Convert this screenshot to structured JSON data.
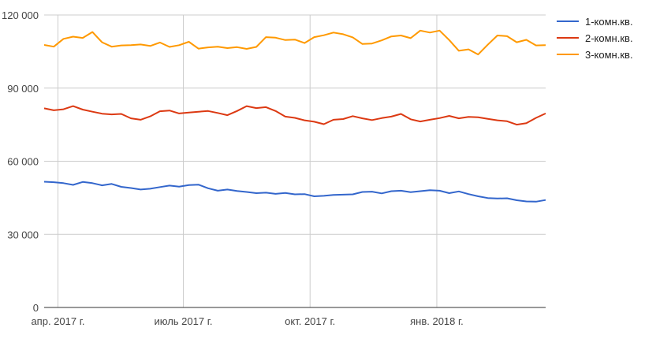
{
  "chart_data": {
    "type": "line",
    "x_format": "date",
    "x_range": [
      "2017-03-22",
      "2018-03-21"
    ],
    "x_tick_dates": [
      "2017-04-01",
      "2017-07-01",
      "2017-10-01",
      "2018-01-01"
    ],
    "x_tick_labels": [
      "апр. 2017 г.",
      "июль 2017 г.",
      "окт. 2017 г.",
      "янв. 2018 г."
    ],
    "ylim": [
      0,
      120000
    ],
    "y_ticks": [
      0,
      30000,
      60000,
      90000,
      120000
    ],
    "y_tick_labels": [
      "0",
      "30 000",
      "60 000",
      "90 000",
      "120 000"
    ],
    "grid": true,
    "legend_position": "right",
    "series": [
      {
        "name": "1-комн.кв.",
        "color": "#3366cc",
        "points": [
          [
            "2017-03-22",
            51600
          ],
          [
            "2017-03-29",
            51400
          ],
          [
            "2017-04-05",
            51000
          ],
          [
            "2017-04-12",
            50300
          ],
          [
            "2017-04-19",
            51500
          ],
          [
            "2017-04-26",
            51000
          ],
          [
            "2017-05-03",
            50100
          ],
          [
            "2017-05-10",
            50700
          ],
          [
            "2017-05-17",
            49500
          ],
          [
            "2017-05-24",
            49000
          ],
          [
            "2017-05-31",
            48400
          ],
          [
            "2017-06-07",
            48700
          ],
          [
            "2017-06-14",
            49400
          ],
          [
            "2017-06-21",
            50000
          ],
          [
            "2017-06-28",
            49600
          ],
          [
            "2017-07-05",
            50200
          ],
          [
            "2017-07-12",
            50400
          ],
          [
            "2017-07-19",
            48900
          ],
          [
            "2017-07-26",
            47900
          ],
          [
            "2017-08-02",
            48400
          ],
          [
            "2017-08-09",
            47800
          ],
          [
            "2017-08-16",
            47400
          ],
          [
            "2017-08-23",
            46900
          ],
          [
            "2017-08-30",
            47100
          ],
          [
            "2017-09-06",
            46600
          ],
          [
            "2017-09-13",
            47000
          ],
          [
            "2017-09-20",
            46400
          ],
          [
            "2017-09-27",
            46500
          ],
          [
            "2017-10-04",
            45600
          ],
          [
            "2017-10-11",
            45800
          ],
          [
            "2017-10-18",
            46200
          ],
          [
            "2017-10-25",
            46300
          ],
          [
            "2017-11-01",
            46400
          ],
          [
            "2017-11-08",
            47400
          ],
          [
            "2017-11-15",
            47500
          ],
          [
            "2017-11-22",
            46800
          ],
          [
            "2017-11-29",
            47700
          ],
          [
            "2017-12-06",
            47900
          ],
          [
            "2017-12-13",
            47300
          ],
          [
            "2017-12-20",
            47700
          ],
          [
            "2017-12-27",
            48100
          ],
          [
            "2018-01-03",
            47900
          ],
          [
            "2018-01-10",
            46900
          ],
          [
            "2018-01-17",
            47600
          ],
          [
            "2018-01-24",
            46500
          ],
          [
            "2018-01-31",
            45600
          ],
          [
            "2018-02-07",
            44900
          ],
          [
            "2018-02-14",
            44700
          ],
          [
            "2018-02-21",
            44800
          ],
          [
            "2018-02-28",
            44000
          ],
          [
            "2018-03-07",
            43500
          ],
          [
            "2018-03-14",
            43400
          ],
          [
            "2018-03-21",
            44100
          ]
        ]
      },
      {
        "name": "2-комн.кв.",
        "color": "#dc3912",
        "points": [
          [
            "2017-03-22",
            81700
          ],
          [
            "2017-03-29",
            80900
          ],
          [
            "2017-04-05",
            81300
          ],
          [
            "2017-04-12",
            82600
          ],
          [
            "2017-04-19",
            81200
          ],
          [
            "2017-04-26",
            80300
          ],
          [
            "2017-05-03",
            79500
          ],
          [
            "2017-05-10",
            79200
          ],
          [
            "2017-05-17",
            79400
          ],
          [
            "2017-05-24",
            77600
          ],
          [
            "2017-05-31",
            77000
          ],
          [
            "2017-06-07",
            78400
          ],
          [
            "2017-06-14",
            80500
          ],
          [
            "2017-06-21",
            80800
          ],
          [
            "2017-06-28",
            79600
          ],
          [
            "2017-07-05",
            80000
          ],
          [
            "2017-07-12",
            80300
          ],
          [
            "2017-07-19",
            80600
          ],
          [
            "2017-07-26",
            79800
          ],
          [
            "2017-08-02",
            78900
          ],
          [
            "2017-08-09",
            80600
          ],
          [
            "2017-08-16",
            82600
          ],
          [
            "2017-08-23",
            81800
          ],
          [
            "2017-08-30",
            82200
          ],
          [
            "2017-09-06",
            80600
          ],
          [
            "2017-09-13",
            78300
          ],
          [
            "2017-09-20",
            77800
          ],
          [
            "2017-09-27",
            76800
          ],
          [
            "2017-10-04",
            76200
          ],
          [
            "2017-10-11",
            75200
          ],
          [
            "2017-10-18",
            77000
          ],
          [
            "2017-10-25",
            77300
          ],
          [
            "2017-11-01",
            78500
          ],
          [
            "2017-11-08",
            77600
          ],
          [
            "2017-11-15",
            76900
          ],
          [
            "2017-11-22",
            77700
          ],
          [
            "2017-11-29",
            78300
          ],
          [
            "2017-12-06",
            79400
          ],
          [
            "2017-12-13",
            77200
          ],
          [
            "2017-12-20",
            76300
          ],
          [
            "2017-12-27",
            77000
          ],
          [
            "2018-01-03",
            77700
          ],
          [
            "2018-01-10",
            78600
          ],
          [
            "2018-01-17",
            77600
          ],
          [
            "2018-01-24",
            78200
          ],
          [
            "2018-01-31",
            78000
          ],
          [
            "2018-02-07",
            77400
          ],
          [
            "2018-02-14",
            76800
          ],
          [
            "2018-02-21",
            76400
          ],
          [
            "2018-02-28",
            75000
          ],
          [
            "2018-03-07",
            75600
          ],
          [
            "2018-03-14",
            77800
          ],
          [
            "2018-03-21",
            79600
          ]
        ]
      },
      {
        "name": "3-комн.кв.",
        "color": "#ff9900",
        "points": [
          [
            "2017-03-22",
            107700
          ],
          [
            "2017-03-29",
            107000
          ],
          [
            "2017-04-05",
            110200
          ],
          [
            "2017-04-12",
            111100
          ],
          [
            "2017-04-19",
            110600
          ],
          [
            "2017-04-26",
            113000
          ],
          [
            "2017-05-03",
            108800
          ],
          [
            "2017-05-10",
            107000
          ],
          [
            "2017-05-17",
            107500
          ],
          [
            "2017-05-24",
            107600
          ],
          [
            "2017-05-31",
            107900
          ],
          [
            "2017-06-07",
            107300
          ],
          [
            "2017-06-14",
            108700
          ],
          [
            "2017-06-21",
            106900
          ],
          [
            "2017-06-28",
            107600
          ],
          [
            "2017-07-05",
            109000
          ],
          [
            "2017-07-12",
            106200
          ],
          [
            "2017-07-19",
            106700
          ],
          [
            "2017-07-26",
            107000
          ],
          [
            "2017-08-02",
            106400
          ],
          [
            "2017-08-09",
            106800
          ],
          [
            "2017-08-16",
            106100
          ],
          [
            "2017-08-23",
            106900
          ],
          [
            "2017-08-30",
            110900
          ],
          [
            "2017-09-06",
            110700
          ],
          [
            "2017-09-13",
            109700
          ],
          [
            "2017-09-20",
            109900
          ],
          [
            "2017-09-27",
            108500
          ],
          [
            "2017-10-04",
            110900
          ],
          [
            "2017-10-11",
            111700
          ],
          [
            "2017-10-18",
            112800
          ],
          [
            "2017-10-25",
            112100
          ],
          [
            "2017-11-01",
            110800
          ],
          [
            "2017-11-08",
            108100
          ],
          [
            "2017-11-15",
            108300
          ],
          [
            "2017-11-22",
            109600
          ],
          [
            "2017-11-29",
            111200
          ],
          [
            "2017-12-06",
            111600
          ],
          [
            "2017-12-13",
            110500
          ],
          [
            "2017-12-20",
            113600
          ],
          [
            "2017-12-27",
            112800
          ],
          [
            "2018-01-03",
            113600
          ],
          [
            "2018-01-10",
            109700
          ],
          [
            "2018-01-17",
            105300
          ],
          [
            "2018-01-24",
            105900
          ],
          [
            "2018-01-31",
            103800
          ],
          [
            "2018-02-07",
            107800
          ],
          [
            "2018-02-14",
            111600
          ],
          [
            "2018-02-21",
            111300
          ],
          [
            "2018-02-28",
            108800
          ],
          [
            "2018-03-07",
            109800
          ],
          [
            "2018-03-14",
            107500
          ],
          [
            "2018-03-21",
            107600
          ]
        ]
      }
    ]
  }
}
